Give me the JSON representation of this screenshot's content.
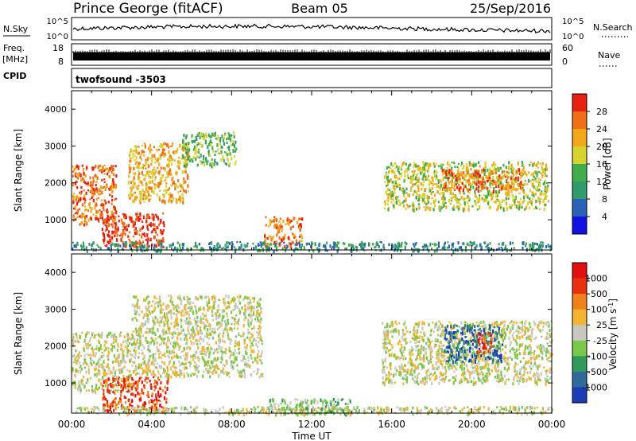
{
  "header": {
    "title": "Prince George (fitACF)",
    "beam": "Beam 05",
    "date": "25/Sep/2016"
  },
  "top_strip": {
    "nsky_label": "N.Sky",
    "nsky_ticks": [
      "10^5",
      "10^0"
    ],
    "nsearch_label": "N.Search",
    "freq_label": "Freq.",
    "freq_unit": "[MHz]",
    "freq_ticks": [
      "18",
      "8"
    ],
    "nave_label": "Nave",
    "nave_ticks": [
      "60",
      "0"
    ],
    "cpid_label": "CPID",
    "cpid_value": "twofsound -3503"
  },
  "chart_data": [
    {
      "type": "heatmap",
      "name": "power",
      "xlabel": "",
      "ylabel": "Slant Range [km]",
      "xlim": [
        0,
        24
      ],
      "ylim": [
        180,
        4500
      ],
      "yticks": [
        "1000",
        "2000",
        "3000",
        "4000"
      ],
      "colorbar": {
        "label": "Power [dB]",
        "ticks": [
          "4",
          "8",
          "12",
          "16",
          "20",
          "24",
          "28"
        ],
        "colors": [
          "#1010e0",
          "#2a62b8",
          "#2f9a6c",
          "#3fae4a",
          "#d8d232",
          "#f3a818",
          "#f07018",
          "#e82010"
        ]
      },
      "regions": [
        {
          "t0": 0.0,
          "t1": 2.2,
          "r0": 900,
          "r1": 2500,
          "level": 6
        },
        {
          "t0": 1.5,
          "t1": 4.6,
          "r0": 300,
          "r1": 1200,
          "level": 7
        },
        {
          "t0": 2.8,
          "t1": 5.8,
          "r0": 1500,
          "r1": 3100,
          "level": 5
        },
        {
          "t0": 5.5,
          "t1": 8.2,
          "r0": 2500,
          "r1": 3400,
          "level": 3
        },
        {
          "t0": 9.6,
          "t1": 11.5,
          "r0": 300,
          "r1": 1100,
          "level": 6
        },
        {
          "t0": 15.6,
          "t1": 23.8,
          "r0": 1300,
          "r1": 2600,
          "level": 4
        },
        {
          "t0": 18.5,
          "t1": 22.5,
          "r0": 1800,
          "r1": 2400,
          "level": 6
        },
        {
          "t0": 0.0,
          "t1": 24.0,
          "r0": 180,
          "r1": 420,
          "level": 2
        }
      ]
    },
    {
      "type": "heatmap",
      "name": "velocity",
      "xlabel": "Time UT",
      "ylabel": "Slant Range [km]",
      "xlim": [
        0,
        24
      ],
      "ylim": [
        180,
        4500
      ],
      "xticks": [
        "00:00",
        "04:00",
        "08:00",
        "12:00",
        "16:00",
        "20:00",
        "00:00"
      ],
      "yticks": [
        "1000",
        "2000",
        "3000",
        "4000"
      ],
      "colorbar": {
        "label": "Velocity [m s^-1]",
        "ticks": [
          "1000",
          "500",
          "100",
          "25",
          "-25",
          "-100",
          "-500",
          "-1000"
        ],
        "colors": [
          "#1a3cb4",
          "#2f6a9a",
          "#2f9a5a",
          "#79c84c",
          "#c8c8c0",
          "#f4b430",
          "#f08018",
          "#e83010",
          "#e01010"
        ]
      },
      "regions": [
        {
          "t0": 0.0,
          "t1": 3.0,
          "r0": 800,
          "r1": 2400,
          "level": 4
        },
        {
          "t0": 1.5,
          "t1": 4.8,
          "r0": 250,
          "r1": 1200,
          "level": 7
        },
        {
          "t0": 3.0,
          "t1": 9.5,
          "r0": 1200,
          "r1": 3400,
          "level": 4
        },
        {
          "t0": 15.5,
          "t1": 24.0,
          "r0": 1000,
          "r1": 2700,
          "level": 4
        },
        {
          "t0": 18.6,
          "t1": 21.5,
          "r0": 1600,
          "r1": 2600,
          "level": 1
        },
        {
          "t0": 20.2,
          "t1": 21.0,
          "r0": 1800,
          "r1": 2400,
          "level": 7
        },
        {
          "t0": 9.8,
          "t1": 14.0,
          "r0": 180,
          "r1": 600,
          "level": 3
        },
        {
          "t0": 0.0,
          "t1": 24.0,
          "r0": 180,
          "r1": 380,
          "level": 4
        }
      ]
    }
  ]
}
